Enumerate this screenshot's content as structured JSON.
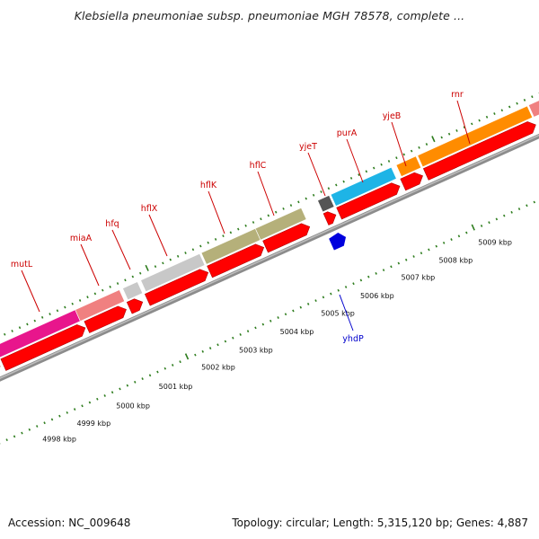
{
  "title": "Klebsiella pneumoniae subsp. pneumoniae MGH 78578, complete ...",
  "footer": {
    "accession": "Accession: NC_009648",
    "stats": "Topology: circular; Length: 5,315,120 bp; Genes: 4,887"
  },
  "colors": {
    "backbone": "#8c8c8c",
    "cds": "#ff0000",
    "tick": "#2e7d1e",
    "label_red": "#cc0000",
    "label_blue": "#0000cc"
  },
  "kbp_labels": [
    "4998 kbp",
    "4999 kbp",
    "5000 kbp",
    "5001 kbp",
    "5002 kbp",
    "5003 kbp",
    "5004 kbp",
    "5005 kbp",
    "5006 kbp",
    "5007 kbp",
    "5008 kbp",
    "5009 kbp"
  ],
  "gene_labels": [
    {
      "name": "mutL",
      "color": "#cc0000"
    },
    {
      "name": "miaA",
      "color": "#cc0000"
    },
    {
      "name": "hfq",
      "color": "#cc0000"
    },
    {
      "name": "hflX",
      "color": "#cc0000"
    },
    {
      "name": "hflK",
      "color": "#cc0000"
    },
    {
      "name": "hflC",
      "color": "#cc0000"
    },
    {
      "name": "yjeT",
      "color": "#cc0000"
    },
    {
      "name": "purA",
      "color": "#cc0000"
    },
    {
      "name": "yjeB",
      "color": "#cc0000"
    },
    {
      "name": "rnr",
      "color": "#cc0000"
    },
    {
      "name": "yhdP",
      "color": "#0000cc"
    }
  ],
  "gene_bars": [
    {
      "gene": "mutL",
      "color": "#e8168c"
    },
    {
      "gene": "miaA",
      "color": "#f08080"
    },
    {
      "gene": "hfq",
      "color": "#c8c8c8"
    },
    {
      "gene": "hflX",
      "color": "#c8c8c8"
    },
    {
      "gene": "hflK",
      "color": "#b5b07a"
    },
    {
      "gene": "hflC",
      "color": "#b5b07a"
    },
    {
      "gene": "yjeT",
      "color": "#555555"
    },
    {
      "gene": "purA",
      "color": "#1eb4e6"
    },
    {
      "gene": "yjeB",
      "color": "#ff8c00"
    },
    {
      "gene": "rnr",
      "color": "#ff8c00"
    }
  ]
}
